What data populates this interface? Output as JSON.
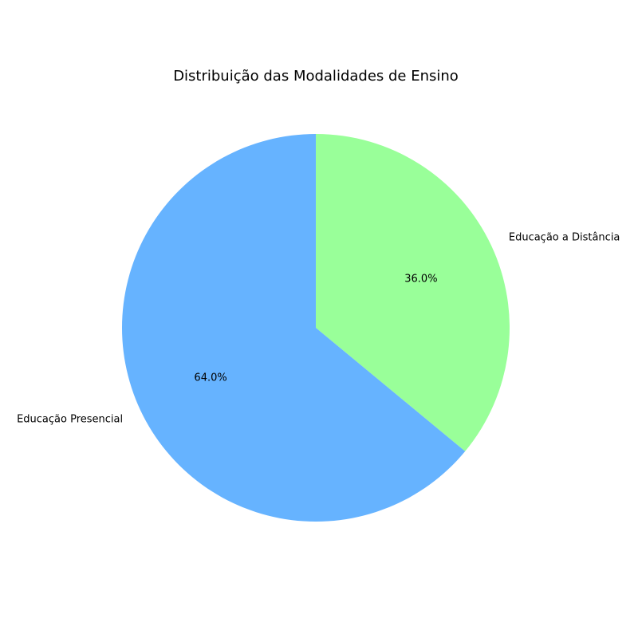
{
  "chart_data": {
    "type": "pie",
    "title": "Distribuição das Modalidades de Ensino",
    "slices": [
      {
        "label": "Educação a Distância",
        "value": 36.0,
        "percent_label": "36.0%",
        "color": "#99ff99"
      },
      {
        "label": "Educação Presencial",
        "value": 64.0,
        "percent_label": "64.0%",
        "color": "#66b3ff"
      }
    ],
    "start_angle_deg": 90,
    "direction": "clockwise",
    "legend": "none"
  }
}
